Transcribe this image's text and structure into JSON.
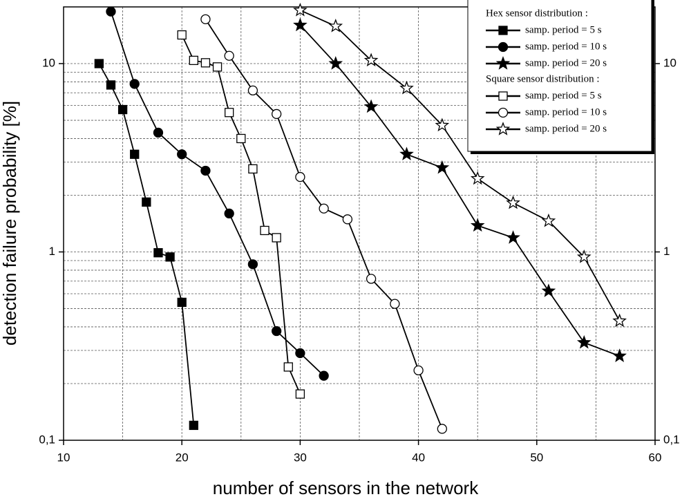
{
  "chart_data": {
    "type": "line",
    "x_label": "number of sensors in the network",
    "y_label": "detection failure probability [%]",
    "xlim": [
      10,
      60
    ],
    "xticks": [
      10,
      20,
      30,
      40,
      50,
      60
    ],
    "x_grid": [
      15,
      20,
      25,
      30,
      35,
      40,
      45,
      50,
      55
    ],
    "ylim": [
      0.1,
      20
    ],
    "log_y": true,
    "yticks": [
      {
        "value": 0.1,
        "label": "0,1"
      },
      1,
      10
    ],
    "y_grid": [
      0.2,
      0.3,
      0.4,
      0.5,
      0.6,
      0.7,
      0.8,
      0.9,
      1,
      2,
      3,
      4,
      5,
      6,
      7,
      8,
      9,
      10,
      20
    ],
    "legend": "upper right",
    "groups": [
      {
        "title": "Hex sensor distribution :",
        "series": [
          {
            "name": "samp. period = 5 s",
            "marker": "square",
            "filled": true,
            "color": "#000000",
            "x": [
              13,
              14,
              15,
              16,
              17,
              18,
              19,
              20,
              21
            ],
            "values": [
              10,
              7.7,
              5.7,
              3.3,
              1.84,
              0.99,
              0.94,
              0.54,
              0.12
            ]
          },
          {
            "name": "samp. period = 10 s",
            "marker": "circle",
            "filled": true,
            "color": "#000000",
            "x": [
              14,
              16,
              18,
              20,
              22,
              24,
              26,
              28,
              30,
              32
            ],
            "values": [
              18.9,
              7.8,
              4.3,
              3.3,
              2.7,
              1.6,
              0.86,
              0.38,
              0.29,
              0.22
            ]
          },
          {
            "name": "samp. period = 20 s",
            "marker": "star",
            "filled": true,
            "color": "#000000",
            "x": [
              30,
              33,
              36,
              39,
              42,
              45,
              48,
              51,
              54,
              57
            ],
            "values": [
              16,
              10,
              5.9,
              3.3,
              2.8,
              1.38,
              1.19,
              0.62,
              0.33,
              0.28
            ]
          }
        ]
      },
      {
        "title": "Square sensor distribution :",
        "series": [
          {
            "name": "samp. period = 5 s",
            "marker": "square",
            "filled": false,
            "color": "#000000",
            "x": [
              20,
              21,
              22,
              23,
              24,
              25,
              26,
              27,
              28,
              29,
              30
            ],
            "values": [
              14.2,
              10.4,
              10.1,
              9.6,
              5.5,
              4.0,
              2.76,
              1.3,
              1.19,
              0.245,
              0.176
            ]
          },
          {
            "name": "samp. period = 10 s",
            "marker": "circle",
            "filled": false,
            "color": "#000000",
            "x": [
              22,
              24,
              26,
              28,
              30,
              32,
              34,
              36,
              38,
              40,
              42
            ],
            "values": [
              17.2,
              11,
              7.2,
              5.4,
              2.5,
              1.7,
              1.49,
              0.72,
              0.53,
              0.235,
              0.115
            ]
          },
          {
            "name": "samp. period = 20 s",
            "marker": "star",
            "filled": false,
            "color": "#000000",
            "x": [
              30,
              33,
              36,
              39,
              42,
              45,
              48,
              51,
              54,
              57
            ],
            "values": [
              19.2,
              15.8,
              10.4,
              7.4,
              4.7,
              2.45,
              1.82,
              1.46,
              0.94,
              0.43
            ]
          }
        ]
      }
    ]
  }
}
